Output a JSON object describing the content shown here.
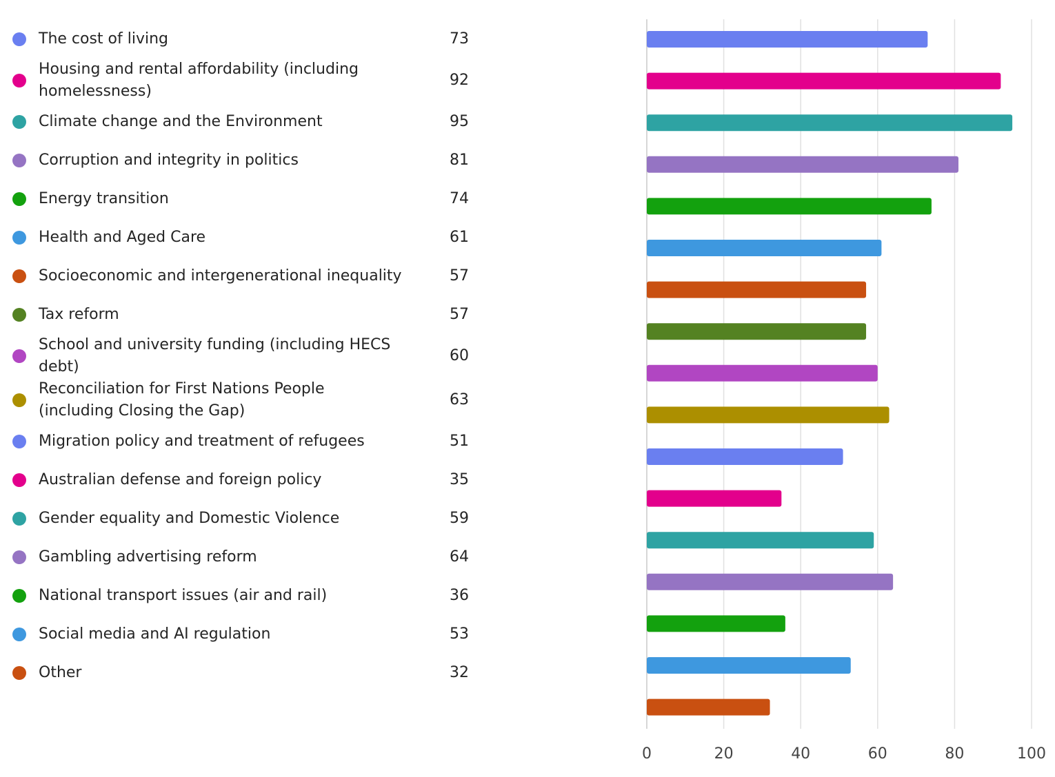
{
  "chart_data": {
    "type": "bar",
    "orientation": "horizontal",
    "title": "",
    "xlabel": "",
    "ylabel": "",
    "xlim": [
      0,
      100
    ],
    "xticks": [
      0,
      20,
      40,
      60,
      80,
      100
    ],
    "grid": true,
    "legend": "left",
    "categories": [
      "The cost of living",
      "Housing and rental affordability (including homelessness)",
      "Climate change and the Environment",
      "Corruption and integrity in politics",
      "Energy transition",
      "Health and Aged Care",
      "Socioeconomic and intergenerational inequality",
      "Tax reform",
      "School and university funding (including HECS debt)",
      "Reconciliation for First Nations People (including Closing the Gap)",
      "Migration policy and treatment of refugees",
      "Australian defense and foreign policy",
      "Gender equality and Domestic Violence",
      "Gambling advertising reform",
      "National transport issues (air and rail)",
      "Social media and AI regulation",
      "Other"
    ],
    "values": [
      73,
      92,
      95,
      81,
      74,
      61,
      57,
      57,
      60,
      63,
      51,
      35,
      59,
      64,
      36,
      53,
      32
    ],
    "colors": [
      "#6a7ff0",
      "#e3008c",
      "#2ea3a3",
      "#9574c3",
      "#13a10e",
      "#3e98df",
      "#c95011",
      "#548222",
      "#b146c2",
      "#ac8f00",
      "#6a7ff0",
      "#e3008c",
      "#2ea3a3",
      "#9574c3",
      "#13a10e",
      "#3e98df",
      "#c95011"
    ]
  }
}
